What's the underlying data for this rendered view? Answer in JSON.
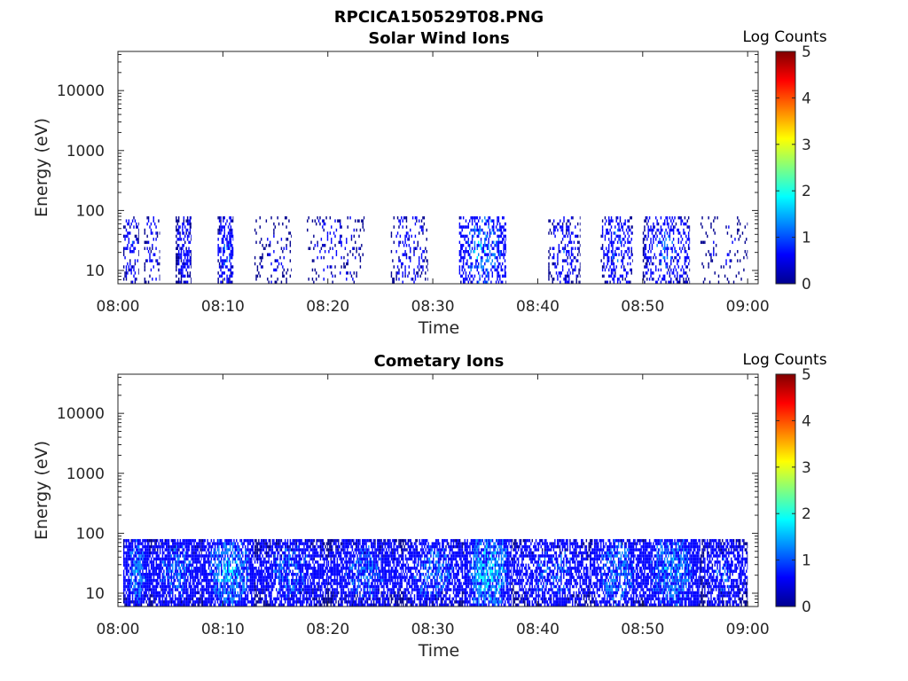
{
  "figure": {
    "title": "RPCICA150529T08.PNG"
  },
  "colormap": [
    "#00008f",
    "#0000ff",
    "#0080ff",
    "#00ffff",
    "#80ff80",
    "#ffff00",
    "#ff8000",
    "#ff0000",
    "#800000"
  ],
  "chart_data": [
    {
      "type": "heatmap",
      "title": "Solar Wind Ions",
      "xlabel": "Time",
      "ylabel": "Energy (eV)",
      "x_ticks": [
        "08:00",
        "08:10",
        "08:20",
        "08:30",
        "08:40",
        "08:50",
        "09:00"
      ],
      "x_range_minutes": [
        0,
        61
      ],
      "y_scale": "log",
      "y_ticks": [
        10,
        100,
        1000,
        10000
      ],
      "y_range": [
        6,
        45000
      ],
      "colorbar": {
        "label": "Log Counts",
        "ticks": [
          0,
          1,
          2,
          3,
          4,
          5
        ],
        "range": [
          0,
          5
        ]
      },
      "activity": {
        "energy_band_ev": [
          6,
          80
        ],
        "segments": [
          {
            "t": [
              0.5,
              2.0
            ],
            "density": 0.35,
            "max_log_counts": 1.0
          },
          {
            "t": [
              2.5,
              4.0
            ],
            "density": 0.25,
            "max_log_counts": 0.8
          },
          {
            "t": [
              5.5,
              7.0
            ],
            "density": 0.55,
            "max_log_counts": 1.0
          },
          {
            "t": [
              9.5,
              11.0
            ],
            "density": 0.5,
            "max_log_counts": 1.3
          },
          {
            "t": [
              13.0,
              16.5
            ],
            "density": 0.12,
            "max_log_counts": 0.6
          },
          {
            "t": [
              18.0,
              23.5
            ],
            "density": 0.15,
            "max_log_counts": 0.7
          },
          {
            "t": [
              26.0,
              29.5
            ],
            "density": 0.2,
            "max_log_counts": 0.8
          },
          {
            "t": [
              32.5,
              37.0
            ],
            "density": 0.45,
            "max_log_counts": 1.8
          },
          {
            "t": [
              41.0,
              44.0
            ],
            "density": 0.3,
            "max_log_counts": 1.0
          },
          {
            "t": [
              46.0,
              49.0
            ],
            "density": 0.35,
            "max_log_counts": 1.2
          },
          {
            "t": [
              50.0,
              54.5
            ],
            "density": 0.4,
            "max_log_counts": 1.2
          },
          {
            "t": [
              55.5,
              60.0
            ],
            "density": 0.08,
            "max_log_counts": 0.5
          }
        ]
      }
    },
    {
      "type": "heatmap",
      "title": "Cometary Ions",
      "xlabel": "Time",
      "ylabel": "Energy (eV)",
      "x_ticks": [
        "08:00",
        "08:10",
        "08:20",
        "08:30",
        "08:40",
        "08:50",
        "09:00"
      ],
      "x_range_minutes": [
        0,
        61
      ],
      "y_scale": "log",
      "y_ticks": [
        10,
        100,
        1000,
        10000
      ],
      "y_range": [
        6,
        45000
      ],
      "colorbar": {
        "label": "Log Counts",
        "ticks": [
          0,
          1,
          2,
          3,
          4,
          5
        ],
        "range": [
          0,
          5
        ]
      },
      "activity": {
        "energy_band_ev": [
          6,
          80
        ],
        "segments": [
          {
            "t": [
              0.5,
              3.0
            ],
            "density": 0.85,
            "max_log_counts": 1.6
          },
          {
            "t": [
              3.0,
              8.0
            ],
            "density": 0.8,
            "max_log_counts": 1.4
          },
          {
            "t": [
              8.0,
              13.0
            ],
            "density": 0.75,
            "max_log_counts": 1.9
          },
          {
            "t": [
              13.0,
              20.0
            ],
            "density": 0.75,
            "max_log_counts": 1.3
          },
          {
            "t": [
              20.0,
              27.0
            ],
            "density": 0.75,
            "max_log_counts": 1.3
          },
          {
            "t": [
              27.0,
              33.0
            ],
            "density": 0.7,
            "max_log_counts": 1.4
          },
          {
            "t": [
              33.0,
              37.5
            ],
            "density": 0.8,
            "max_log_counts": 2.3
          },
          {
            "t": [
              37.5,
              45.0
            ],
            "density": 0.65,
            "max_log_counts": 1.3
          },
          {
            "t": [
              45.0,
              50.0
            ],
            "density": 0.7,
            "max_log_counts": 1.6
          },
          {
            "t": [
              50.0,
              55.5
            ],
            "density": 0.8,
            "max_log_counts": 1.8
          },
          {
            "t": [
              55.5,
              60.0
            ],
            "density": 0.65,
            "max_log_counts": 1.2
          }
        ]
      }
    }
  ]
}
